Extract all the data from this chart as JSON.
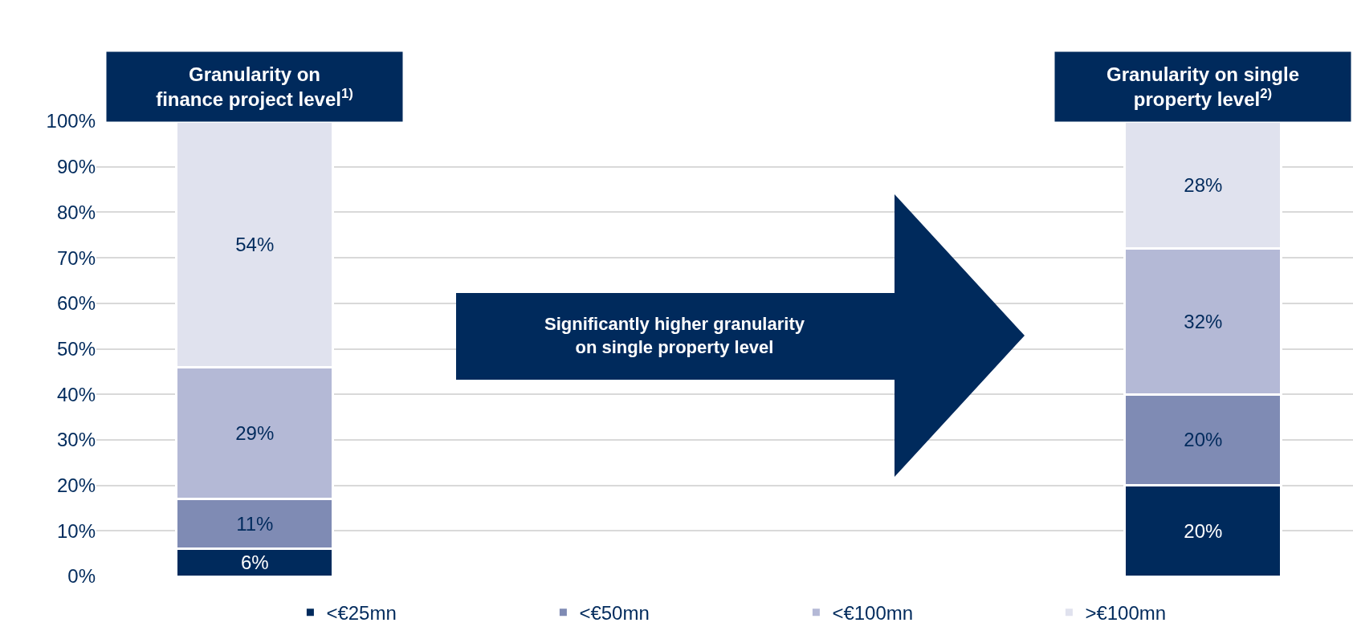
{
  "chart_data": {
    "type": "bar",
    "stacked": true,
    "categories": [
      "Granularity on\nfinance project level$^{1)}$",
      "Granularity on single\nproperty level$^{2)}$"
    ],
    "series": [
      {
        "name": "<€25mn",
        "color": "#002a5c",
        "values": [
          6,
          20
        ],
        "value_labels": [
          "6%",
          "20%"
        ]
      },
      {
        "name": "<€50mn",
        "color": "#7f8bb4",
        "values": [
          11,
          20
        ],
        "value_labels": [
          "11%",
          "20%"
        ]
      },
      {
        "name": "<€100mn",
        "color": "#b4b9d6",
        "values": [
          29,
          32
        ],
        "value_labels": [
          "29%",
          "32%"
        ]
      },
      {
        "name": ">€100mn",
        "color": "#e0e2ee",
        "values": [
          54,
          28
        ],
        "value_labels": [
          "54%",
          "28%"
        ]
      }
    ],
    "ylim": [
      0,
      100
    ],
    "yticks": [
      {
        "value": 0,
        "label": "0%"
      },
      {
        "value": 10,
        "label": "10%"
      },
      {
        "value": 20,
        "label": "20%"
      },
      {
        "value": 30,
        "label": "30%"
      },
      {
        "value": 40,
        "label": "40%"
      },
      {
        "value": 50,
        "label": "50%"
      },
      {
        "value": 60,
        "label": "60%"
      },
      {
        "value": 70,
        "label": "70%"
      },
      {
        "value": 80,
        "label": "80%"
      },
      {
        "value": 90,
        "label": "90%"
      },
      {
        "value": 100,
        "label": "100%"
      }
    ],
    "grid": "y",
    "legend": "bottom",
    "tick_labels": "y",
    "annotations": [
      "Significantly higher granularity\non single property level"
    ]
  }
}
